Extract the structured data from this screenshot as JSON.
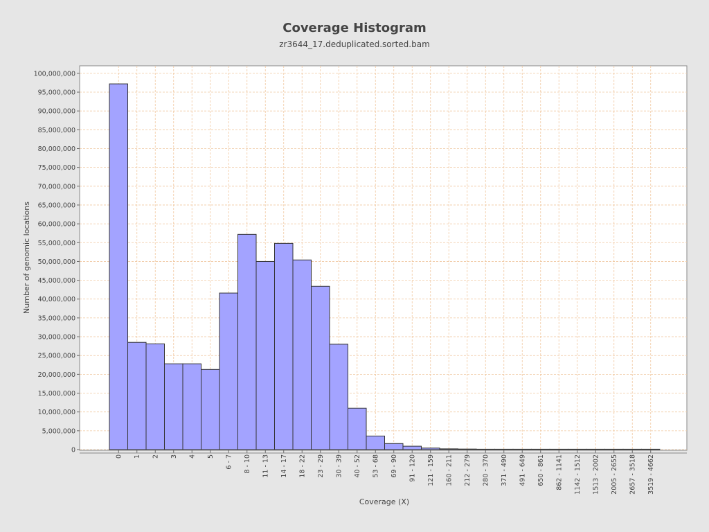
{
  "chart_data": {
    "type": "bar",
    "title": "Coverage Histogram",
    "subtitle": "zr3644_17.deduplicated.sorted.bam",
    "xlabel": "Coverage (X)",
    "ylabel": "Number of genomic locations",
    "ylim": [
      0,
      102000000
    ],
    "ytick_step": 5000000,
    "grid": true,
    "legend": "none",
    "colors": {
      "bar_fill": "#a3a3ff",
      "bar_stroke": "#333333",
      "grid": "#f0c8a0",
      "plot_bg": "#ffffff"
    },
    "categories": [
      "0",
      "1",
      "2",
      "3",
      "4",
      "5",
      "6 - 7",
      "8 - 10",
      "11 - 13",
      "14 - 17",
      "18 - 22",
      "23 - 29",
      "30 - 39",
      "40 - 52",
      "53 - 68",
      "69 - 90",
      "91 - 120",
      "121 - 159",
      "160 - 211",
      "212 - 279",
      "280 - 370",
      "371 - 490",
      "491 - 649",
      "650 - 861",
      "862 - 1141",
      "1142 - 1512",
      "1513 - 2002",
      "2005 - 2655",
      "2657 - 3518",
      "3519 - 4662"
    ],
    "values": [
      97200000,
      28500000,
      28100000,
      22800000,
      22800000,
      21300000,
      41600000,
      57200000,
      50000000,
      54800000,
      50400000,
      43400000,
      28000000,
      11000000,
      3600000,
      1600000,
      900000,
      400000,
      200000,
      150000,
      40000,
      20000,
      10000,
      5000,
      2000,
      1000,
      500,
      200,
      100,
      50
    ]
  }
}
